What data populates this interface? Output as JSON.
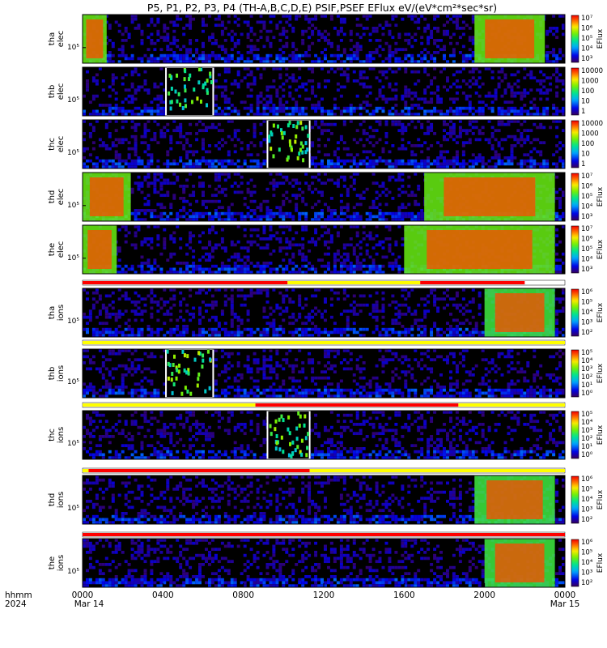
{
  "chart_data": {
    "type": "heatmap",
    "title": "P5, P1, P2, P3, P4 (TH-A,B,C,D,E) PSIF,PSEF EFlux eV/(eV*cm²*sec*sr)",
    "x_axis": {
      "type": "time",
      "range_hours": [
        0,
        24
      ],
      "tick_labels": [
        "0000",
        "0400",
        "0800",
        "1200",
        "1600",
        "2000",
        "0000"
      ],
      "date_labels": [
        "Mar 14",
        "Mar 15"
      ],
      "left_labels": [
        "hhmm",
        "2024"
      ]
    },
    "panels": [
      {
        "probe": "tha",
        "species": "elec",
        "ylabel_lines": [
          "tha",
          "elec"
        ],
        "ytick": "10⁵",
        "colorbar_label": "EFlux",
        "colorbar_ticks": [
          "10⁷",
          "10⁶",
          "10⁵",
          "10⁴",
          "10³"
        ],
        "log_range": [
          2.5,
          7
        ],
        "data_gaps_hours": [],
        "hot_plasma_hours": [
          [
            0,
            1.2
          ],
          [
            19.5,
            23
          ]
        ]
      },
      {
        "probe": "thb",
        "species": "elec",
        "ylabel_lines": [
          "thb",
          "elec"
        ],
        "ytick": "10⁵",
        "colorbar_label": "",
        "colorbar_ticks": [
          "10000",
          "1000",
          "100",
          "10",
          "1"
        ],
        "log_range": [
          0,
          4.3
        ],
        "data_gaps_hours": [
          [
            4.15,
            6.5
          ]
        ],
        "hot_plasma_hours": []
      },
      {
        "probe": "thc",
        "species": "elec",
        "ylabel_lines": [
          "thc",
          "elec"
        ],
        "ytick": "10⁵",
        "colorbar_label": "",
        "colorbar_ticks": [
          "10000",
          "1000",
          "100",
          "10",
          "1"
        ],
        "log_range": [
          0,
          4.3
        ],
        "data_gaps_hours": [
          [
            9.2,
            11.3
          ]
        ],
        "hot_plasma_hours": []
      },
      {
        "probe": "thd",
        "species": "elec",
        "ylabel_lines": [
          "thd",
          "elec"
        ],
        "ytick": "10⁵",
        "colorbar_label": "EFlux",
        "colorbar_ticks": [
          "10⁷",
          "10⁶",
          "10⁵",
          "10⁴",
          "10³"
        ],
        "log_range": [
          2.5,
          7
        ],
        "data_gaps_hours": [],
        "hot_plasma_hours": [
          [
            0,
            2.4
          ],
          [
            17,
            23.5
          ]
        ]
      },
      {
        "probe": "the",
        "species": "elec",
        "ylabel_lines": [
          "the",
          "elec"
        ],
        "ytick": "10⁵",
        "colorbar_label": "EFlux",
        "colorbar_ticks": [
          "10⁷",
          "10⁶",
          "10⁵",
          "10⁴",
          "10³"
        ],
        "log_range": [
          2.5,
          7
        ],
        "data_gaps_hours": [],
        "hot_plasma_hours": [
          [
            0,
            1.7
          ],
          [
            16,
            23.5
          ]
        ]
      },
      {
        "probe": "tha",
        "species": "ions",
        "ylabel_lines": [
          "tha",
          "ions"
        ],
        "ytick": "10⁵",
        "colorbar_label": "EFlux",
        "colorbar_ticks": [
          "10⁶",
          "10⁵",
          "10⁴",
          "10³",
          "10²"
        ],
        "log_range": [
          1.5,
          6
        ],
        "data_gaps_hours": [],
        "hot_plasma_hours": [
          [
            20,
            23.5
          ]
        ]
      },
      {
        "probe": "thb",
        "species": "ions",
        "ylabel_lines": [
          "thb",
          "ions"
        ],
        "ytick": "10⁵",
        "colorbar_label": "EFlux",
        "colorbar_ticks": [
          "10⁵",
          "10⁴",
          "10³",
          "10²",
          "10¹",
          "10⁰"
        ],
        "log_range": [
          0,
          5.5
        ],
        "data_gaps_hours": [
          [
            4.15,
            6.5
          ]
        ],
        "hot_plasma_hours": []
      },
      {
        "probe": "thc",
        "species": "ions",
        "ylabel_lines": [
          "thc",
          "ions"
        ],
        "ytick": "10⁵",
        "colorbar_label": "EFlux",
        "colorbar_ticks": [
          "10⁵",
          "10⁴",
          "10³",
          "10²",
          "10¹",
          "10⁰"
        ],
        "log_range": [
          0,
          5.5
        ],
        "data_gaps_hours": [
          [
            9.2,
            11.3
          ]
        ],
        "hot_plasma_hours": []
      },
      {
        "probe": "thd",
        "species": "ions",
        "ylabel_lines": [
          "thd",
          "ions"
        ],
        "ytick": "10⁵",
        "colorbar_label": "EFlux",
        "colorbar_ticks": [
          "10⁶",
          "10⁵",
          "10⁴",
          "10³",
          "10²"
        ],
        "log_range": [
          1.5,
          6
        ],
        "data_gaps_hours": [],
        "hot_plasma_hours": [
          [
            19.5,
            23.5
          ]
        ]
      },
      {
        "probe": "the",
        "species": "ions",
        "ylabel_lines": [
          "the",
          "ions"
        ],
        "ytick": "10⁵",
        "colorbar_label": "EFlux",
        "colorbar_ticks": [
          "10⁶",
          "10⁵",
          "10⁴",
          "10³",
          "10²"
        ],
        "log_range": [
          1.5,
          6
        ],
        "data_gaps_hours": [],
        "hot_plasma_hours": [
          [
            20,
            23.5
          ]
        ]
      }
    ],
    "mode_bars": [
      {
        "after_panel": 4,
        "segments": [
          {
            "from": 0,
            "to": 10.2,
            "color": "#ff0000"
          },
          {
            "from": 10.2,
            "to": 16.8,
            "color": "#ffff00"
          },
          {
            "from": 16.8,
            "to": 22,
            "color": "#ff0000"
          }
        ]
      },
      {
        "after_panel": 5,
        "segments": [
          {
            "from": 0,
            "to": 24,
            "color": "#ffff00"
          }
        ]
      },
      {
        "after_panel": 6,
        "segments": [
          {
            "from": 0,
            "to": 8.6,
            "color": "#ffff00"
          },
          {
            "from": 8.6,
            "to": 18.7,
            "color": "#ff0000"
          },
          {
            "from": 18.7,
            "to": 24,
            "color": "#ffff00"
          }
        ]
      },
      {
        "after_panel": 7,
        "segments": [
          {
            "from": 0,
            "to": 0.3,
            "color": "#ffff00"
          },
          {
            "from": 0.3,
            "to": 11.3,
            "color": "#ff0000"
          },
          {
            "from": 11.3,
            "to": 24,
            "color": "#ffff00"
          }
        ]
      },
      {
        "after_panel": 8,
        "segments": [
          {
            "from": 0,
            "to": 24,
            "color": "#ff0000"
          }
        ]
      }
    ]
  }
}
